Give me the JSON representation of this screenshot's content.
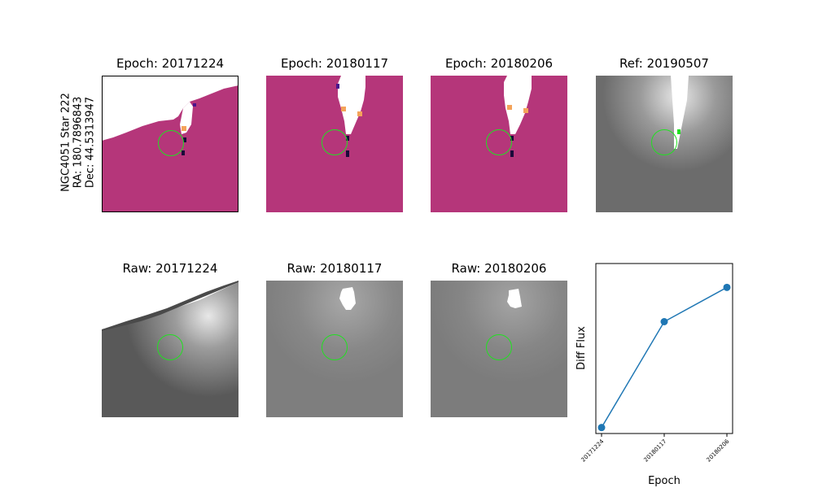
{
  "star_label": {
    "line1": "NGC4051 Star 222",
    "line2": "RA: 180.7896843",
    "line3": "Dec: 44.5313947"
  },
  "top_titles": [
    "Epoch: 20171224",
    "Epoch: 20180117",
    "Epoch: 20180206",
    "Ref: 20190507"
  ],
  "bottom_titles": [
    "Raw: 20171224",
    "Raw: 20180117",
    "Raw: 20180206"
  ],
  "colors": {
    "diff_bg": "#b5367a",
    "circle": "#22e022",
    "line": "#1f77b4"
  },
  "chart_data": {
    "type": "line",
    "xlabel": "Epoch",
    "ylabel": "Diff Flux",
    "categories": [
      "20171224",
      "20180117",
      "20180206"
    ],
    "values": [
      0.0,
      0.71,
      0.94
    ],
    "ylim": [
      -0.04,
      1.1
    ],
    "grid": false,
    "y_ticks_visible": false
  }
}
